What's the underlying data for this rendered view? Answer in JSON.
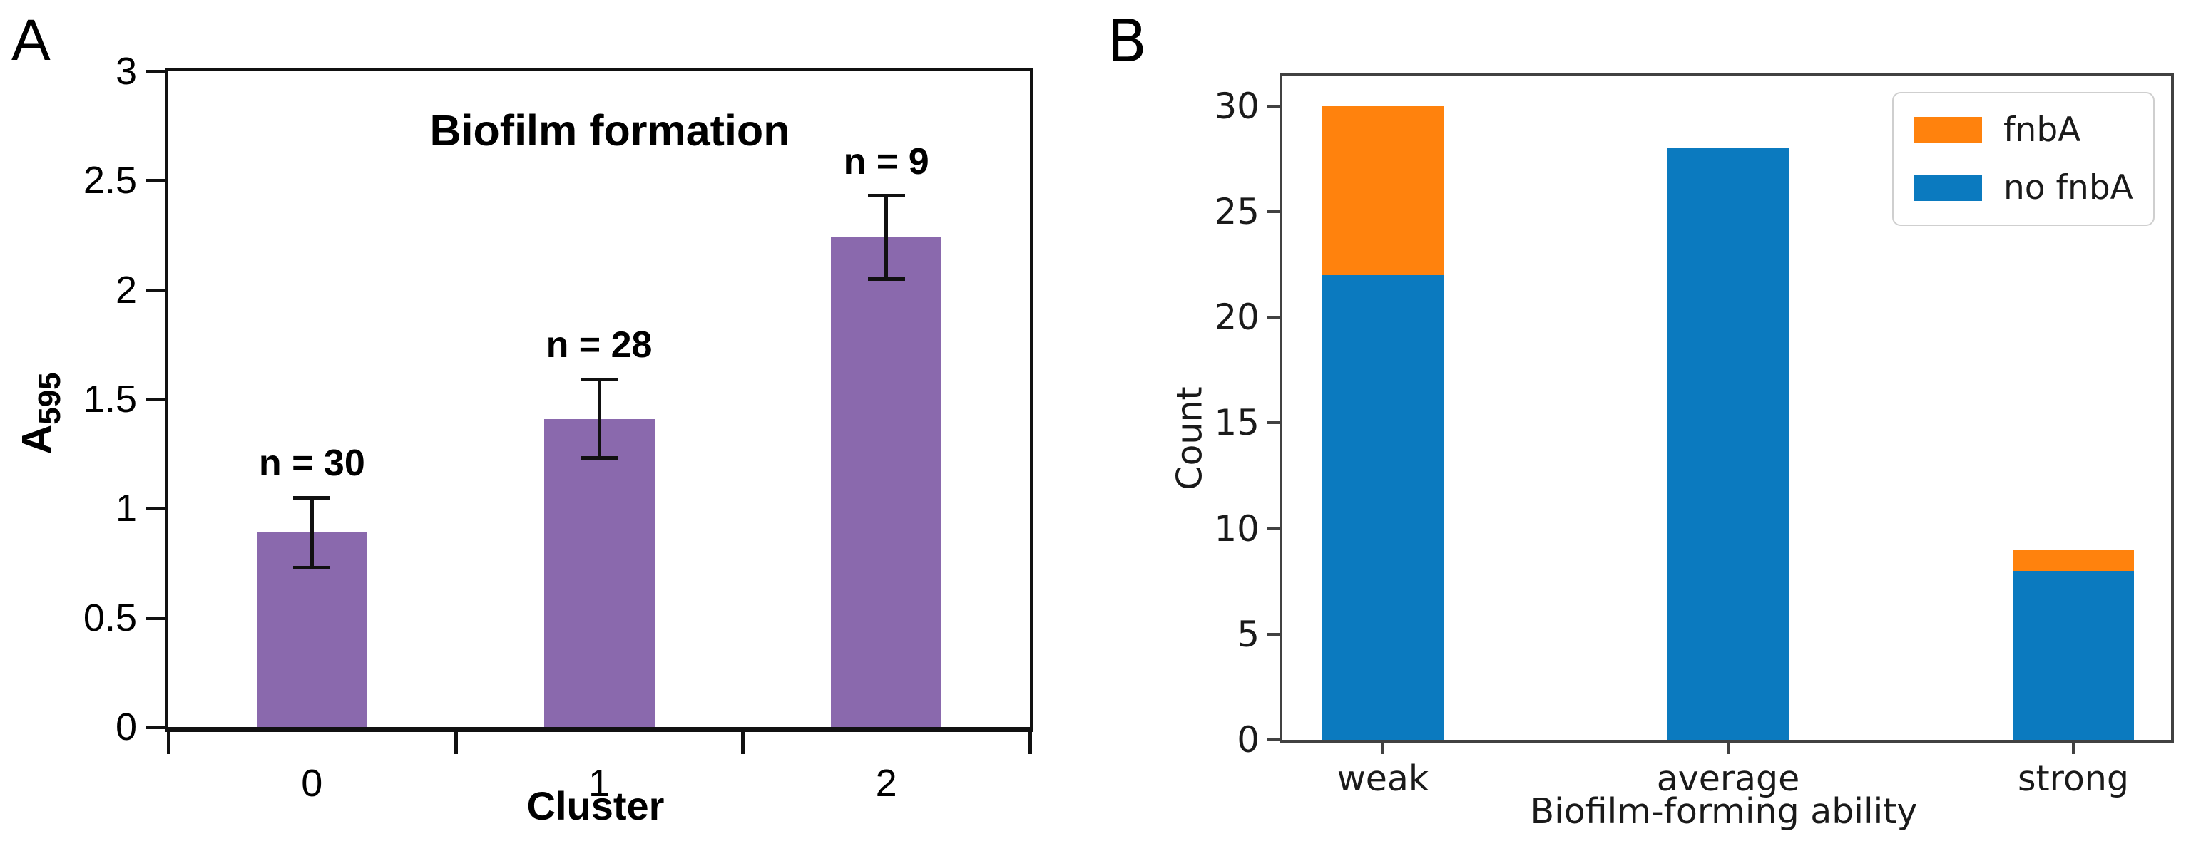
{
  "panel_labels": [
    "A",
    "B"
  ],
  "chart_data": [
    {
      "id": "A",
      "type": "bar",
      "title": "Biofilm formation",
      "xlabel": "Cluster",
      "ylabel_base": "A",
      "ylabel_sub": "595",
      "categories": [
        "0",
        "1",
        "2"
      ],
      "values": [
        0.89,
        1.41,
        2.24
      ],
      "error_low": [
        0.73,
        1.23,
        2.05
      ],
      "error_high": [
        1.05,
        1.59,
        2.43
      ],
      "annotations": [
        "n = 30",
        "n = 28",
        "n = 9"
      ],
      "ylim": [
        0,
        3
      ],
      "yticks": [
        0,
        0.5,
        1,
        1.5,
        2,
        2.5,
        3
      ],
      "ytick_labels": [
        "0",
        "0.5",
        "1",
        "1.5",
        "2",
        "2.5",
        "3"
      ],
      "bar_color": "#8a69ad",
      "error_color": "#111111",
      "grid": false,
      "legend_position": "none"
    },
    {
      "id": "B",
      "type": "bar",
      "stacked": true,
      "xlabel": "Biofilm-forming ability",
      "ylabel": "Count",
      "categories": [
        "weak",
        "average",
        "strong"
      ],
      "series": [
        {
          "name": "fnbA",
          "color": "#ff820d",
          "values": [
            8,
            0,
            1
          ]
        },
        {
          "name": "no fnbA",
          "color": "#0b7abf",
          "values": [
            22,
            28,
            8
          ]
        }
      ],
      "ylim": [
        0,
        31.4
      ],
      "yticks": [
        0,
        5,
        10,
        15,
        20,
        25,
        30
      ],
      "grid": false,
      "legend_position": "upper right"
    }
  ]
}
